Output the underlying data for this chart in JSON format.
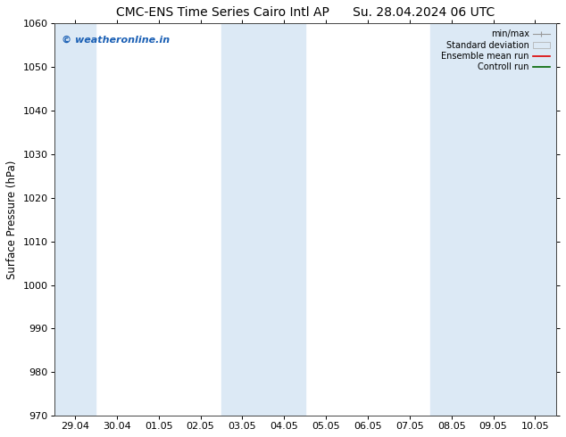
{
  "title": "CMC-ENS Time Series Cairo Intl AP      Su. 28.04.2024 06 UTC",
  "ylabel": "Surface Pressure (hPa)",
  "ylim": [
    970,
    1060
  ],
  "yticks": [
    970,
    980,
    990,
    1000,
    1010,
    1020,
    1030,
    1040,
    1050,
    1060
  ],
  "x_labels": [
    "29.04",
    "30.04",
    "01.05",
    "02.05",
    "03.05",
    "04.05",
    "05.05",
    "06.05",
    "07.05",
    "08.05",
    "09.05",
    "10.05"
  ],
  "shade_indices": [
    0,
    4,
    5,
    9,
    10,
    11
  ],
  "shade_color": "#dce9f5",
  "watermark": "© weatheronline.in",
  "watermark_color": "#1a5fb4",
  "legend_entries": [
    "min/max",
    "Standard deviation",
    "Ensemble mean run",
    "Controll run"
  ],
  "legend_line_colors": [
    "#999999",
    "#cccccc",
    "#dd0000",
    "#006600"
  ],
  "bg_color": "#ffffff",
  "spine_color": "#444444",
  "title_fontsize": 10,
  "tick_fontsize": 8,
  "ylabel_fontsize": 8.5,
  "watermark_fontsize": 8
}
